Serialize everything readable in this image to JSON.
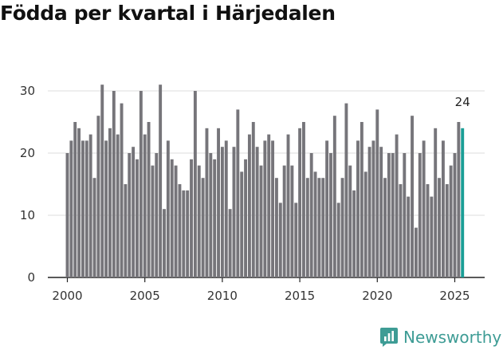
{
  "title": "Födda per kvartal i Härjedalen",
  "brand": {
    "name": "Newsworthy",
    "color": "#3e9c95"
  },
  "colors": {
    "bar": "#76757a",
    "highlight": "#1a9e96",
    "grid": "#dddddd",
    "axis": "#222222"
  },
  "chart_data": {
    "type": "bar",
    "x_start": "2000 Q1",
    "x_ticks": [
      "2000",
      "2005",
      "2010",
      "2015",
      "2020",
      "2025"
    ],
    "y_ticks": [
      "0",
      "10",
      "20",
      "30"
    ],
    "ylim": [
      0,
      35
    ],
    "grid": true,
    "values": [
      20,
      22,
      25,
      24,
      22,
      22,
      23,
      16,
      26,
      31,
      22,
      24,
      30,
      23,
      28,
      15,
      20,
      21,
      19,
      30,
      23,
      25,
      18,
      20,
      31,
      11,
      22,
      19,
      18,
      15,
      14,
      14,
      19,
      30,
      18,
      16,
      24,
      20,
      19,
      24,
      21,
      22,
      11,
      21,
      27,
      17,
      19,
      23,
      25,
      21,
      18,
      22,
      23,
      22,
      16,
      12,
      18,
      23,
      18,
      12,
      24,
      25,
      16,
      20,
      17,
      16,
      16,
      22,
      20,
      26,
      12,
      16,
      28,
      18,
      14,
      22,
      25,
      17,
      21,
      22,
      27,
      21,
      16,
      20,
      20,
      23,
      15,
      20,
      13,
      26,
      8,
      20,
      22,
      15,
      13,
      24,
      16,
      22,
      15,
      18,
      20,
      25,
      24
    ],
    "highlight_last": true,
    "last_value_label": "24"
  }
}
